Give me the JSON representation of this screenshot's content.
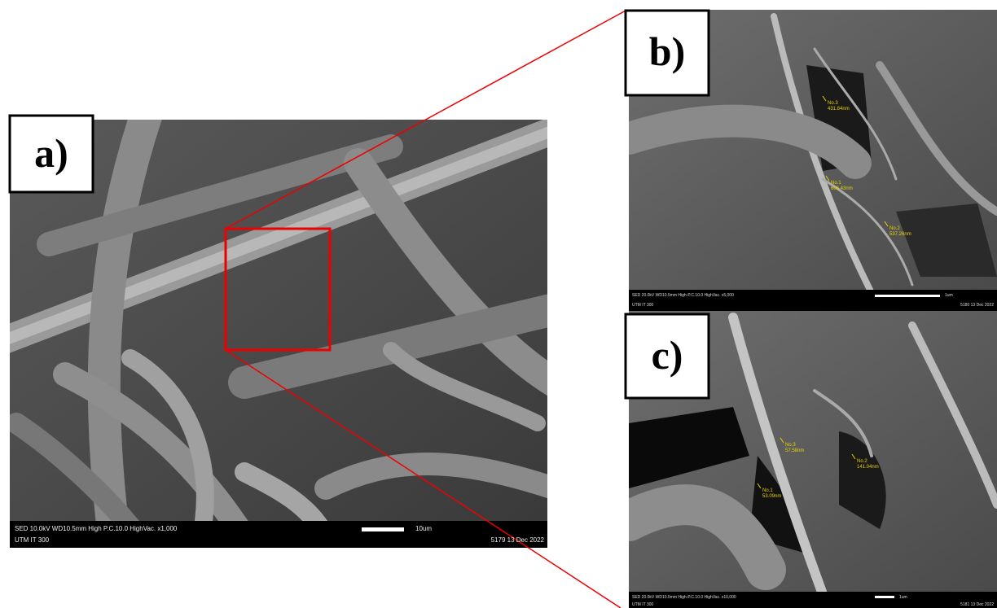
{
  "panels": [
    {
      "label": "a)",
      "info_top": "SED   10.0kV   WD10.5mm   High P.C.10.0   HighVac.   x1,000",
      "scale": "10um",
      "info_left": "UTM IT 300",
      "info_right": "5179     13 Dec 2022",
      "measurements": []
    },
    {
      "label": "b)",
      "info_top": "SED   20.0kV   WD10.5mm   High-P.C.10.0   HighVac.   x5,000",
      "scale": "1um",
      "info_left": "UTM IT 300",
      "info_right": "5180   13 Dec 2022",
      "measurements": [
        {
          "id": "No.3",
          "size": "431.84nm"
        },
        {
          "id": "No.1",
          "size": "606.43nm"
        },
        {
          "id": "No.2",
          "size": "537.26nm"
        }
      ]
    },
    {
      "label": "c)",
      "info_top": "SED   20.0kV   WD10.5mm   High-P.C.10.0   HighVac.   x10,000",
      "scale": "1um",
      "info_left": "UTM IT 300",
      "info_right": "5181   13 Dec 2022",
      "measurements": [
        {
          "id": "No.3",
          "size": "57.58nm"
        },
        {
          "id": "No.2",
          "size": "141.04nm"
        },
        {
          "id": "No.1",
          "size": "53.09nm"
        }
      ]
    }
  ]
}
